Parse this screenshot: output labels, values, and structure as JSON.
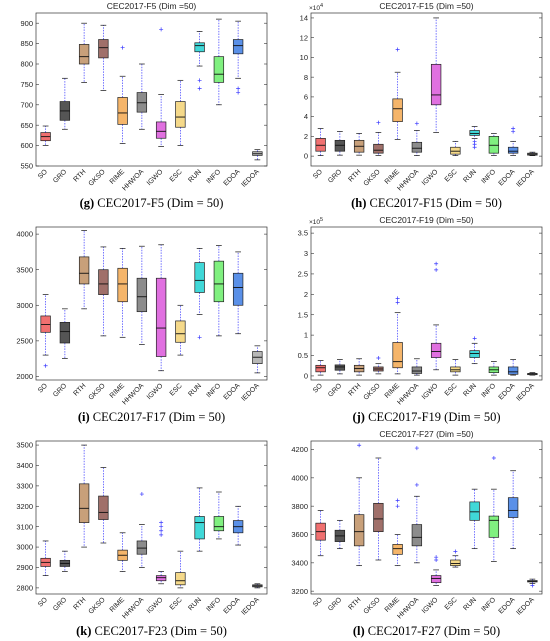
{
  "chart_data": [
    {
      "type": "box",
      "title": "CEC2017-F5 (Dim =50)",
      "caption_tag": "(g)",
      "caption_text": "CEC2017-F5 (Dim = 50)",
      "exponent": "",
      "ylim": [
        550,
        925
      ],
      "yticks": [
        550,
        600,
        650,
        700,
        750,
        800,
        850,
        900
      ],
      "categories": [
        "SO",
        "GRO",
        "RTH",
        "GKSO",
        "RIME",
        "HHWOA",
        "IGWO",
        "ESC",
        "RUN",
        "INFO",
        "EDOA",
        "IEDOA"
      ],
      "colors": [
        "#f07070",
        "#555555",
        "#c8a07a",
        "#a0706a",
        "#f5b56a",
        "#8c8c8c",
        "#e070e0",
        "#f5d98a",
        "#40d8d8",
        "#80f080",
        "#5a90e8",
        "#b8b8b8"
      ],
      "boxes": [
        {
          "min": 600,
          "q1": 612,
          "median": 622,
          "q3": 632,
          "max": 648,
          "outliers": []
        },
        {
          "min": 640,
          "q1": 662,
          "median": 685,
          "q3": 708,
          "max": 765,
          "outliers": []
        },
        {
          "min": 755,
          "q1": 800,
          "median": 818,
          "q3": 848,
          "max": 900,
          "outliers": []
        },
        {
          "min": 735,
          "q1": 815,
          "median": 840,
          "q3": 860,
          "max": 895,
          "outliers": []
        },
        {
          "min": 605,
          "q1": 652,
          "median": 680,
          "q3": 718,
          "max": 770,
          "outliers": [
            840
          ]
        },
        {
          "min": 640,
          "q1": 682,
          "median": 705,
          "q3": 730,
          "max": 800,
          "outliers": []
        },
        {
          "min": 598,
          "q1": 618,
          "median": 635,
          "q3": 658,
          "max": 725,
          "outliers": [
            885
          ]
        },
        {
          "min": 600,
          "q1": 645,
          "median": 670,
          "q3": 708,
          "max": 760,
          "outliers": []
        },
        {
          "min": 795,
          "q1": 830,
          "median": 845,
          "q3": 852,
          "max": 880,
          "outliers": [
            740,
            760
          ]
        },
        {
          "min": 700,
          "q1": 755,
          "median": 775,
          "q3": 818,
          "max": 910,
          "outliers": []
        },
        {
          "min": 765,
          "q1": 825,
          "median": 845,
          "q3": 860,
          "max": 905,
          "outliers": [
            730,
            740
          ]
        },
        {
          "min": 565,
          "q1": 576,
          "median": 580,
          "q3": 585,
          "max": 590,
          "outliers": []
        }
      ]
    },
    {
      "type": "box",
      "title": "CEC2017-F15 (Dim =50)",
      "caption_tag": "(h)",
      "caption_text": "CEC2017-F15 (Dim = 50)",
      "exponent": "4",
      "ylim": [
        -1,
        14.5
      ],
      "yticks": [
        0,
        2,
        4,
        6,
        8,
        10,
        12,
        14
      ],
      "categories": [
        "SO",
        "GRO",
        "RTH",
        "GKSO",
        "RIME",
        "HHWOA",
        "IGWO",
        "ESC",
        "RUN",
        "INFO",
        "EDOA",
        "IEDOA"
      ],
      "colors": [
        "#f07070",
        "#555555",
        "#c8a07a",
        "#a0706a",
        "#f5b56a",
        "#8c8c8c",
        "#e070e0",
        "#f5d98a",
        "#40d8d8",
        "#80f080",
        "#5a90e8",
        "#b8b8b8"
      ],
      "boxes": [
        {
          "min": 0.05,
          "q1": 0.5,
          "median": 1.1,
          "q3": 1.8,
          "max": 2.8,
          "outliers": []
        },
        {
          "min": 0.1,
          "q1": 0.5,
          "median": 1.1,
          "q3": 1.6,
          "max": 2.5,
          "outliers": []
        },
        {
          "min": 0.1,
          "q1": 0.4,
          "median": 1.0,
          "q3": 1.6,
          "max": 2.3,
          "outliers": []
        },
        {
          "min": 0.05,
          "q1": 0.3,
          "median": 0.6,
          "q3": 1.2,
          "max": 2.4,
          "outliers": [
            3.4
          ]
        },
        {
          "min": 1.7,
          "q1": 3.5,
          "median": 4.8,
          "q3": 5.8,
          "max": 8.5,
          "outliers": [
            10.8
          ]
        },
        {
          "min": 0.05,
          "q1": 0.4,
          "median": 0.8,
          "q3": 1.4,
          "max": 2.6,
          "outliers": [
            3.3
          ]
        },
        {
          "min": 2.4,
          "q1": 5.2,
          "median": 6.2,
          "q3": 9.3,
          "max": 14.0,
          "outliers": []
        },
        {
          "min": 0.05,
          "q1": 0.2,
          "median": 0.5,
          "q3": 0.9,
          "max": 1.5,
          "outliers": []
        },
        {
          "min": 1.8,
          "q1": 2.1,
          "median": 2.3,
          "q3": 2.6,
          "max": 3.0,
          "outliers": [
            0.9,
            1.2,
            1.5
          ]
        },
        {
          "min": 0.05,
          "q1": 0.3,
          "median": 1.1,
          "q3": 2.0,
          "max": 2.3,
          "outliers": []
        },
        {
          "min": 0.05,
          "q1": 0.3,
          "median": 0.5,
          "q3": 0.9,
          "max": 1.5,
          "outliers": [
            2.5,
            2.8
          ]
        },
        {
          "min": 0.05,
          "q1": 0.1,
          "median": 0.2,
          "q3": 0.3,
          "max": 0.4,
          "outliers": []
        }
      ]
    },
    {
      "type": "box",
      "title": "",
      "caption_tag": "(i)",
      "caption_text": "CEC2017-F17 (Dim = 50)",
      "exponent": "",
      "ylim": [
        1950,
        4100
      ],
      "yticks": [
        2000,
        2500,
        3000,
        3500,
        4000
      ],
      "categories": [
        "SO",
        "GRO",
        "RTH",
        "GKSO",
        "RIME",
        "HHWOA",
        "IGWO",
        "ESC",
        "RUN",
        "INFO",
        "EDOA",
        "IEDOA"
      ],
      "colors": [
        "#f07070",
        "#555555",
        "#c8a07a",
        "#a0706a",
        "#f5b56a",
        "#8c8c8c",
        "#e070e0",
        "#f5d98a",
        "#40d8d8",
        "#80f080",
        "#5a90e8",
        "#b8b8b8"
      ],
      "boxes": [
        {
          "min": 2300,
          "q1": 2620,
          "median": 2730,
          "q3": 2850,
          "max": 3150,
          "outliers": [
            2150
          ]
        },
        {
          "min": 2250,
          "q1": 2470,
          "median": 2630,
          "q3": 2760,
          "max": 2950,
          "outliers": []
        },
        {
          "min": 2950,
          "q1": 3300,
          "median": 3450,
          "q3": 3680,
          "max": 4050,
          "outliers": []
        },
        {
          "min": 2570,
          "q1": 3150,
          "median": 3300,
          "q3": 3500,
          "max": 3820,
          "outliers": []
        },
        {
          "min": 2550,
          "q1": 3050,
          "median": 3300,
          "q3": 3520,
          "max": 3800,
          "outliers": []
        },
        {
          "min": 2450,
          "q1": 2910,
          "median": 3120,
          "q3": 3380,
          "max": 3830,
          "outliers": []
        },
        {
          "min": 2080,
          "q1": 2280,
          "median": 2680,
          "q3": 3380,
          "max": 3850,
          "outliers": []
        },
        {
          "min": 2300,
          "q1": 2480,
          "median": 2600,
          "q3": 2780,
          "max": 3000,
          "outliers": []
        },
        {
          "min": 2870,
          "q1": 3180,
          "median": 3350,
          "q3": 3600,
          "max": 3800,
          "outliers": [
            2550
          ]
        },
        {
          "min": 2570,
          "q1": 3050,
          "median": 3300,
          "q3": 3620,
          "max": 3840,
          "outliers": []
        },
        {
          "min": 2600,
          "q1": 3000,
          "median": 3250,
          "q3": 3450,
          "max": 3750,
          "outliers": []
        },
        {
          "min": 2050,
          "q1": 2180,
          "median": 2270,
          "q3": 2350,
          "max": 2430,
          "outliers": []
        }
      ]
    },
    {
      "type": "box",
      "title": "CEC2017-F19 (Dim =50)",
      "caption_tag": "(j)",
      "caption_text": "CEC2017-F19 (Dim = 50)",
      "exponent": "5",
      "ylim": [
        -0.1,
        3.65
      ],
      "yticks": [
        0,
        0.5,
        1,
        1.5,
        2,
        2.5,
        3,
        3.5
      ],
      "categories": [
        "SO",
        "GRO",
        "RTH",
        "GKSO",
        "RIME",
        "HHWOA",
        "IGWO",
        "ESC",
        "RUN",
        "INFO",
        "EDOA",
        "IEDOA"
      ],
      "colors": [
        "#f07070",
        "#555555",
        "#c8a07a",
        "#a0706a",
        "#f5b56a",
        "#8c8c8c",
        "#e070e0",
        "#f5d98a",
        "#40d8d8",
        "#80f080",
        "#5a90e8",
        "#b8b8b8"
      ],
      "boxes": [
        {
          "min": 0.02,
          "q1": 0.1,
          "median": 0.2,
          "q3": 0.26,
          "max": 0.38,
          "outliers": []
        },
        {
          "min": 0.05,
          "q1": 0.14,
          "median": 0.22,
          "q3": 0.27,
          "max": 0.4,
          "outliers": []
        },
        {
          "min": 0.02,
          "q1": 0.1,
          "median": 0.18,
          "q3": 0.26,
          "max": 0.42,
          "outliers": []
        },
        {
          "min": 0.05,
          "q1": 0.12,
          "median": 0.17,
          "q3": 0.22,
          "max": 0.3,
          "outliers": [
            0.44
          ]
        },
        {
          "min": 0.05,
          "q1": 0.2,
          "median": 0.35,
          "q3": 0.82,
          "max": 1.55,
          "outliers": [
            1.8,
            1.9
          ]
        },
        {
          "min": 0.02,
          "q1": 0.06,
          "median": 0.12,
          "q3": 0.22,
          "max": 0.42,
          "outliers": []
        },
        {
          "min": 0.15,
          "q1": 0.45,
          "median": 0.6,
          "q3": 0.8,
          "max": 1.25,
          "outliers": [
            2.6,
            2.75
          ]
        },
        {
          "min": 0.02,
          "q1": 0.1,
          "median": 0.15,
          "q3": 0.22,
          "max": 0.4,
          "outliers": []
        },
        {
          "min": 0.3,
          "q1": 0.45,
          "median": 0.55,
          "q3": 0.62,
          "max": 0.8,
          "outliers": [
            0.92
          ]
        },
        {
          "min": 0.02,
          "q1": 0.08,
          "median": 0.15,
          "q3": 0.22,
          "max": 0.35,
          "outliers": []
        },
        {
          "min": 0.02,
          "q1": 0.04,
          "median": 0.1,
          "q3": 0.22,
          "max": 0.4,
          "outliers": []
        },
        {
          "min": 0.02,
          "q1": 0.03,
          "median": 0.05,
          "q3": 0.06,
          "max": 0.08,
          "outliers": []
        }
      ]
    },
    {
      "type": "box",
      "title": "",
      "caption_tag": "(k)",
      "caption_text": "CEC2017-F23 (Dim = 50)",
      "exponent": "",
      "ylim": [
        2770,
        3520
      ],
      "yticks": [
        2800,
        2900,
        3000,
        3100,
        3200,
        3300,
        3400,
        3500
      ],
      "categories": [
        "SO",
        "GRO",
        "RTH",
        "GKSO",
        "RIME",
        "HHWOA",
        "IGWO",
        "ESC",
        "RUN",
        "INFO",
        "EDOA",
        "IEDOA"
      ],
      "colors": [
        "#f07070",
        "#555555",
        "#c8a07a",
        "#a0706a",
        "#f5b56a",
        "#8c8c8c",
        "#e070e0",
        "#f5d98a",
        "#40d8d8",
        "#80f080",
        "#5a90e8",
        "#b8b8b8"
      ],
      "boxes": [
        {
          "min": 2860,
          "q1": 2905,
          "median": 2925,
          "q3": 2945,
          "max": 3030,
          "outliers": []
        },
        {
          "min": 2880,
          "q1": 2905,
          "median": 2920,
          "q3": 2935,
          "max": 2980,
          "outliers": []
        },
        {
          "min": 3000,
          "q1": 3120,
          "median": 3190,
          "q3": 3310,
          "max": 3500,
          "outliers": []
        },
        {
          "min": 3020,
          "q1": 3135,
          "median": 3170,
          "q3": 3250,
          "max": 3390,
          "outliers": []
        },
        {
          "min": 2880,
          "q1": 2935,
          "median": 2960,
          "q3": 2985,
          "max": 3070,
          "outliers": []
        },
        {
          "min": 2900,
          "q1": 2965,
          "median": 2995,
          "q3": 3030,
          "max": 3110,
          "outliers": [
            3260
          ]
        },
        {
          "min": 2820,
          "q1": 2835,
          "median": 2850,
          "q3": 2860,
          "max": 2880,
          "outliers": [
            3060,
            3080,
            3100,
            3120
          ]
        },
        {
          "min": 2800,
          "q1": 2815,
          "median": 2835,
          "q3": 2875,
          "max": 2980,
          "outliers": []
        },
        {
          "min": 2980,
          "q1": 3040,
          "median": 3120,
          "q3": 3150,
          "max": 3290,
          "outliers": []
        },
        {
          "min": 3040,
          "q1": 3080,
          "median": 3100,
          "q3": 3150,
          "max": 3270,
          "outliers": []
        },
        {
          "min": 3010,
          "q1": 3070,
          "median": 3100,
          "q3": 3130,
          "max": 3200,
          "outliers": []
        },
        {
          "min": 2800,
          "q1": 2805,
          "median": 2810,
          "q3": 2815,
          "max": 2820,
          "outliers": []
        }
      ]
    },
    {
      "type": "box",
      "title": "CEC2017-F27 (Dim =50)",
      "caption_tag": "(l)",
      "caption_text": "CEC2017-F27 (Dim = 50)",
      "exponent": "",
      "ylim": [
        3180,
        4260
      ],
      "yticks": [
        3200,
        3400,
        3600,
        3800,
        4000,
        4200
      ],
      "categories": [
        "SO",
        "GRO",
        "RTH",
        "GKSO",
        "RIME",
        "HHWOA",
        "IGWO",
        "ESC",
        "RUN",
        "INFO",
        "EDOA",
        "IEDOA"
      ],
      "colors": [
        "#f07070",
        "#555555",
        "#c8a07a",
        "#a0706a",
        "#f5b56a",
        "#8c8c8c",
        "#e070e0",
        "#f5d98a",
        "#40d8d8",
        "#80f080",
        "#5a90e8",
        "#b8b8b8"
      ],
      "boxes": [
        {
          "min": 3450,
          "q1": 3560,
          "median": 3620,
          "q3": 3680,
          "max": 3770,
          "outliers": []
        },
        {
          "min": 3500,
          "q1": 3550,
          "median": 3590,
          "q3": 3630,
          "max": 3700,
          "outliers": []
        },
        {
          "min": 3380,
          "q1": 3520,
          "median": 3620,
          "q3": 3740,
          "max": 4000,
          "outliers": [
            4230
          ]
        },
        {
          "min": 3420,
          "q1": 3620,
          "median": 3710,
          "q3": 3820,
          "max": 4140,
          "outliers": []
        },
        {
          "min": 3380,
          "q1": 3460,
          "median": 3500,
          "q3": 3530,
          "max": 3600,
          "outliers": [
            3800,
            3840
          ]
        },
        {
          "min": 3400,
          "q1": 3520,
          "median": 3580,
          "q3": 3670,
          "max": 3870,
          "outliers": [
            3950,
            4210
          ]
        },
        {
          "min": 3240,
          "q1": 3260,
          "median": 3290,
          "q3": 3310,
          "max": 3350,
          "outliers": [
            3420,
            3440
          ]
        },
        {
          "min": 3370,
          "q1": 3380,
          "median": 3395,
          "q3": 3420,
          "max": 3450,
          "outliers": [
            3480
          ]
        },
        {
          "min": 3500,
          "q1": 3700,
          "median": 3760,
          "q3": 3830,
          "max": 3920,
          "outliers": []
        },
        {
          "min": 3410,
          "q1": 3580,
          "median": 3700,
          "q3": 3730,
          "max": 3920,
          "outliers": [
            4140
          ]
        },
        {
          "min": 3500,
          "q1": 3720,
          "median": 3770,
          "q3": 3860,
          "max": 4050,
          "outliers": []
        },
        {
          "min": 3255,
          "q1": 3265,
          "median": 3270,
          "q3": 3275,
          "max": 3285,
          "outliers": [
            3240
          ]
        }
      ]
    }
  ]
}
